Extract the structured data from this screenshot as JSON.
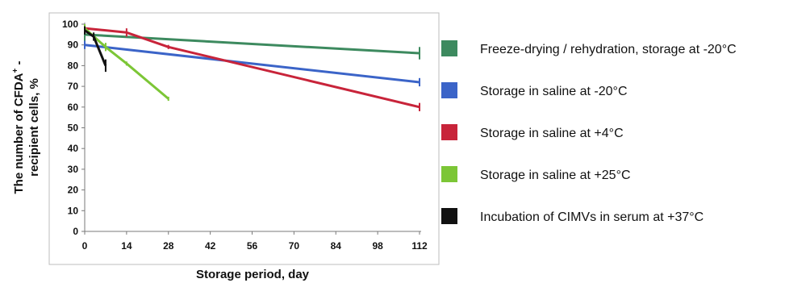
{
  "chart_data": {
    "type": "line",
    "xlabel": "Storage period, day",
    "ylabel_line1": "The number of CFDA",
    "ylabel_superscript": "+",
    "ylabel_line1_end": " -",
    "ylabel_line2": "recipient cells, %",
    "xlim": [
      0,
      112
    ],
    "ylim": [
      0,
      100
    ],
    "x_ticks": [
      0,
      14,
      28,
      42,
      56,
      70,
      84,
      98,
      112
    ],
    "y_ticks": [
      0,
      10,
      20,
      30,
      40,
      50,
      60,
      70,
      80,
      90,
      100
    ],
    "grid": false,
    "legend_position": "right",
    "series": [
      {
        "name": "Freeze-drying / rehydration, storage at -20°C",
        "color": "#3d8a5f",
        "x": [
          0,
          112
        ],
        "y": [
          95,
          86
        ],
        "error": [
          3,
          3
        ]
      },
      {
        "name": "Storage in saline at -20°C",
        "color": "#3b64c8",
        "x": [
          0,
          112
        ],
        "y": [
          90,
          72
        ],
        "error": [
          2,
          2
        ]
      },
      {
        "name": "Storage in saline at +4°C",
        "color": "#c8243a",
        "x": [
          0,
          14,
          28,
          112
        ],
        "y": [
          98,
          96,
          89,
          60
        ],
        "error": [
          2,
          2,
          1,
          2
        ]
      },
      {
        "name": "Storage in saline at +25°C",
        "color": "#7cc636",
        "x": [
          0,
          7,
          14,
          28
        ],
        "y": [
          98,
          89,
          81,
          64
        ],
        "error": [
          2,
          2,
          1,
          1
        ]
      },
      {
        "name": "Incubation of CIMVs in serum at +37°C",
        "color": "#111111",
        "x": [
          0,
          3,
          7
        ],
        "y": [
          97,
          94,
          80
        ],
        "error": [
          2,
          2,
          3
        ]
      }
    ]
  }
}
